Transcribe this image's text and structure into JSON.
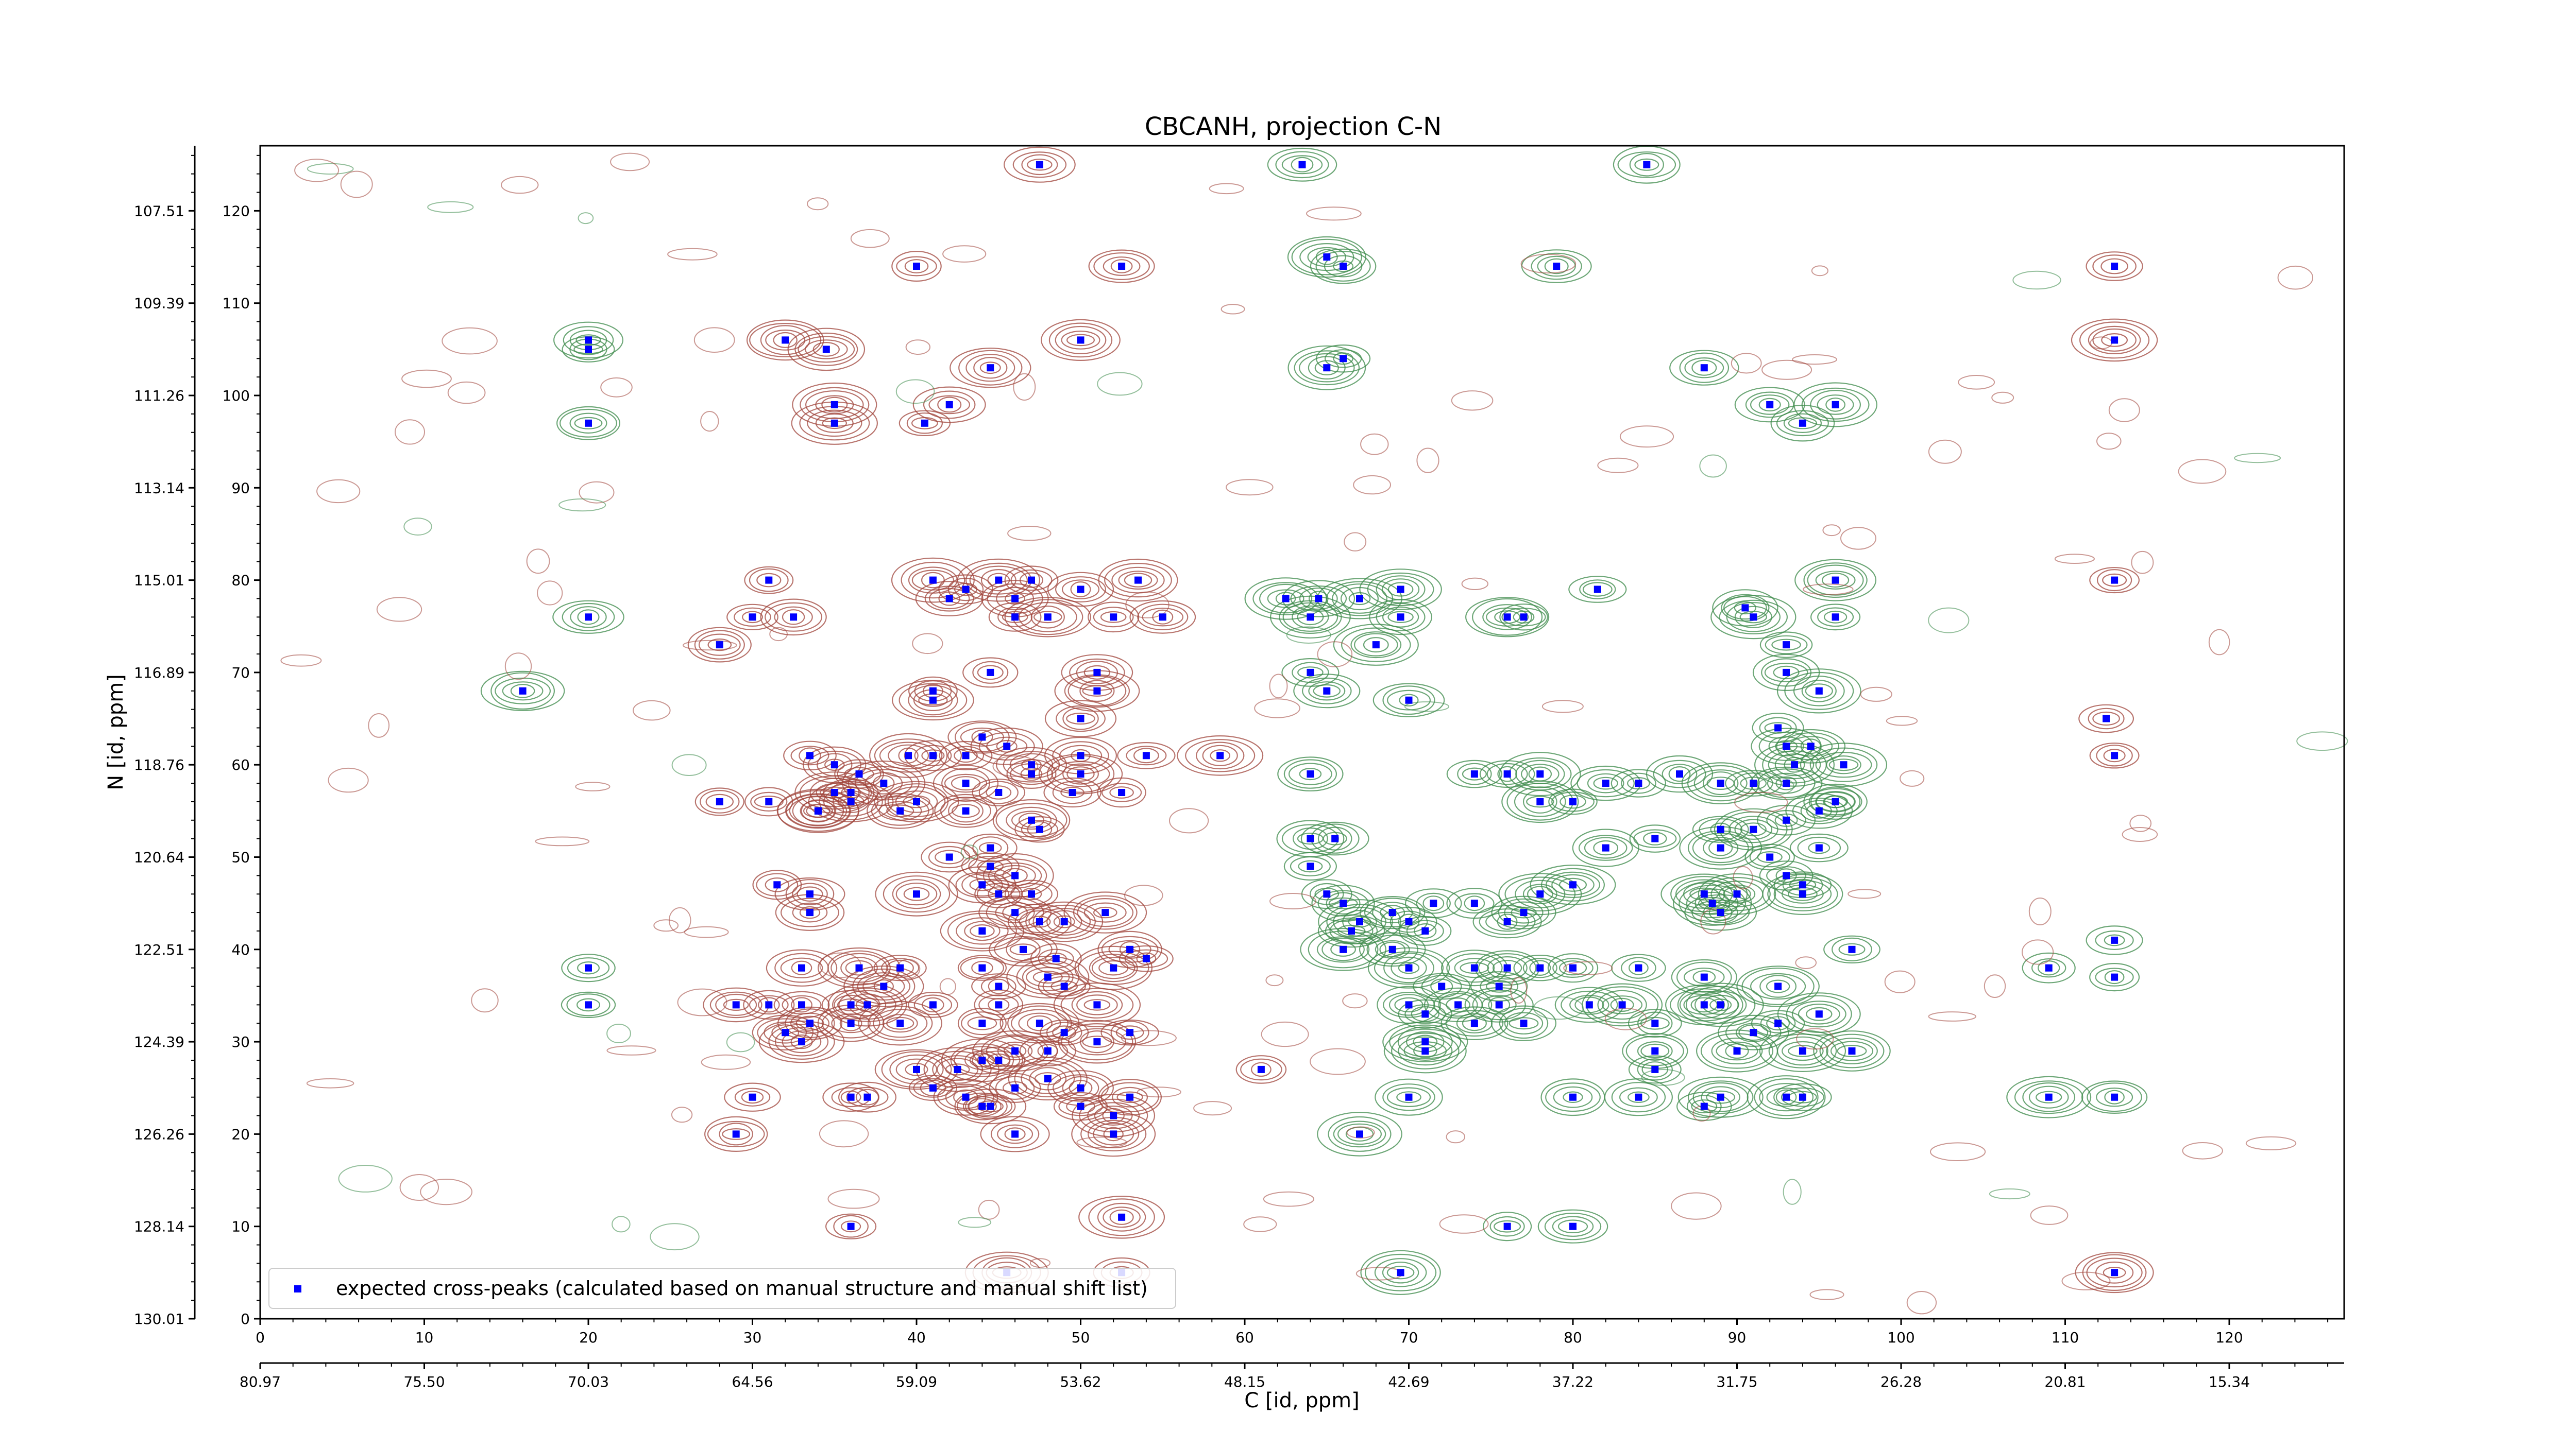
{
  "chart_data": {
    "type": "scatter",
    "title": "CBCANH, projection C-N",
    "xlabel": "C [id, ppm]",
    "ylabel": "N [id, ppm]",
    "x_index_ticks": [
      "0",
      "10",
      "20",
      "30",
      "40",
      "50",
      "60",
      "70",
      "80",
      "90",
      "100",
      "110",
      "120"
    ],
    "x_ppm_ticks": [
      "80.97",
      "75.50",
      "70.03",
      "64.56",
      "59.09",
      "53.62",
      "48.15",
      "42.69",
      "37.22",
      "31.75",
      "26.28",
      "20.81",
      "15.34"
    ],
    "y_index_ticks": [
      "0",
      "10",
      "20",
      "30",
      "40",
      "50",
      "60",
      "70",
      "80",
      "90",
      "100",
      "110",
      "120"
    ],
    "y_ppm_ticks": [
      "130.01",
      "128.14",
      "126.26",
      "124.39",
      "122.51",
      "120.64",
      "118.76",
      "116.89",
      "115.01",
      "113.14",
      "111.26",
      "109.39",
      "107.51"
    ],
    "xlim": [
      0,
      127
    ],
    "ylim": [
      0,
      127
    ],
    "legend": {
      "placement": "bottom-left",
      "label": "expected cross-peaks (calculated based on manual structure and manual shift list)"
    },
    "colors": {
      "marker": "#0000ff",
      "positive_contour": "#a0453c",
      "negative_contour": "#3c8a4a"
    },
    "series": [
      {
        "name": "expected cross-peaks (calculated based on manual structure and manual shift list)",
        "points": [
          [
            47.5,
            125
          ],
          [
            63.5,
            125
          ],
          [
            84.5,
            125
          ],
          [
            40,
            114
          ],
          [
            52.5,
            114
          ],
          [
            65,
            115
          ],
          [
            66,
            114
          ],
          [
            79,
            114
          ],
          [
            113,
            114
          ],
          [
            20,
            106
          ],
          [
            20,
            105
          ],
          [
            32,
            106
          ],
          [
            34.5,
            105
          ],
          [
            50,
            106
          ],
          [
            44.5,
            103
          ],
          [
            65,
            103
          ],
          [
            66,
            104
          ],
          [
            88,
            103
          ],
          [
            113,
            106
          ],
          [
            35,
            99
          ],
          [
            42,
            99
          ],
          [
            40.5,
            97
          ],
          [
            35,
            97
          ],
          [
            20,
            97
          ],
          [
            92,
            99
          ],
          [
            94,
            97
          ],
          [
            96,
            99
          ],
          [
            41,
            80
          ],
          [
            43,
            79
          ],
          [
            45,
            80
          ],
          [
            47,
            80
          ],
          [
            46,
            78
          ],
          [
            50,
            79
          ],
          [
            53.5,
            80
          ],
          [
            42,
            78
          ],
          [
            46,
            76
          ],
          [
            48,
            76
          ],
          [
            52,
            76
          ],
          [
            55,
            76
          ],
          [
            31,
            80
          ],
          [
            30,
            76
          ],
          [
            32.5,
            76
          ],
          [
            20,
            76
          ],
          [
            28,
            73
          ],
          [
            62.5,
            78
          ],
          [
            64.5,
            78
          ],
          [
            67,
            78
          ],
          [
            69.5,
            79
          ],
          [
            81.5,
            79
          ],
          [
            76,
            76
          ],
          [
            77,
            76
          ],
          [
            69.5,
            76
          ],
          [
            64,
            76
          ],
          [
            68,
            73
          ],
          [
            90.5,
            77
          ],
          [
            91,
            76
          ],
          [
            96,
            80
          ],
          [
            96,
            76
          ],
          [
            113,
            80
          ],
          [
            41,
            68
          ],
          [
            41,
            67
          ],
          [
            44.5,
            70
          ],
          [
            51,
            70
          ],
          [
            51,
            68
          ],
          [
            50,
            65
          ],
          [
            16,
            68
          ],
          [
            64,
            70
          ],
          [
            65,
            68
          ],
          [
            70,
            67
          ],
          [
            93,
            73
          ],
          [
            93,
            70
          ],
          [
            95,
            68
          ],
          [
            92.5,
            64
          ],
          [
            93,
            62
          ],
          [
            93.5,
            60
          ],
          [
            94.5,
            62
          ],
          [
            93,
            58
          ],
          [
            96.5,
            60
          ],
          [
            96,
            56
          ],
          [
            112.5,
            65
          ],
          [
            113,
            61
          ],
          [
            33.5,
            61
          ],
          [
            36.5,
            59
          ],
          [
            39.5,
            61
          ],
          [
            41,
            61
          ],
          [
            43,
            61
          ],
          [
            44,
            63
          ],
          [
            45.5,
            62
          ],
          [
            47,
            60
          ],
          [
            47,
            59
          ],
          [
            50,
            61
          ],
          [
            50,
            59
          ],
          [
            54,
            61
          ],
          [
            58.5,
            61
          ],
          [
            38,
            58
          ],
          [
            43,
            58
          ],
          [
            36,
            57
          ],
          [
            40,
            56
          ],
          [
            45,
            57
          ],
          [
            49.5,
            57
          ],
          [
            52.5,
            57
          ],
          [
            31,
            56
          ],
          [
            28,
            56
          ],
          [
            34,
            55
          ],
          [
            36,
            56
          ],
          [
            39,
            55
          ],
          [
            43,
            55
          ],
          [
            47,
            54
          ],
          [
            47.5,
            53
          ],
          [
            44.5,
            51
          ],
          [
            42,
            50
          ],
          [
            44.5,
            49
          ],
          [
            46,
            48
          ],
          [
            47,
            46
          ],
          [
            45,
            46
          ],
          [
            44,
            47
          ],
          [
            40,
            46
          ],
          [
            31.5,
            47
          ],
          [
            33.5,
            46
          ],
          [
            33.5,
            44
          ],
          [
            46,
            44
          ],
          [
            47.5,
            43
          ],
          [
            51.5,
            44
          ],
          [
            49,
            43
          ],
          [
            44,
            42
          ],
          [
            46.5,
            40
          ],
          [
            48.5,
            39
          ],
          [
            52,
            38
          ],
          [
            53,
            40
          ],
          [
            54,
            39
          ],
          [
            64,
            59
          ],
          [
            74,
            59
          ],
          [
            76,
            59
          ],
          [
            78,
            59
          ],
          [
            78,
            56
          ],
          [
            80,
            56
          ],
          [
            82,
            58
          ],
          [
            84,
            58
          ],
          [
            86.5,
            59
          ],
          [
            89,
            58
          ],
          [
            91,
            58
          ],
          [
            89,
            53
          ],
          [
            91,
            53
          ],
          [
            93,
            54
          ],
          [
            95,
            55
          ],
          [
            96,
            56
          ],
          [
            89,
            51
          ],
          [
            92,
            50
          ],
          [
            95,
            51
          ],
          [
            93,
            48
          ],
          [
            94,
            47
          ],
          [
            64,
            52
          ],
          [
            65.5,
            52
          ],
          [
            64,
            49
          ],
          [
            65,
            46
          ],
          [
            66,
            45
          ],
          [
            67,
            43
          ],
          [
            66.5,
            42
          ],
          [
            66,
            40
          ],
          [
            69,
            44
          ],
          [
            70,
            43
          ],
          [
            71.5,
            45
          ],
          [
            71,
            42
          ],
          [
            74,
            45
          ],
          [
            76,
            43
          ],
          [
            77,
            44
          ],
          [
            78,
            46
          ],
          [
            80,
            47
          ],
          [
            82,
            51
          ],
          [
            85,
            52
          ],
          [
            88,
            46
          ],
          [
            88.5,
            45
          ],
          [
            90,
            46
          ],
          [
            89,
            44
          ],
          [
            94,
            46
          ],
          [
            97,
            40
          ],
          [
            69,
            40
          ],
          [
            70,
            38
          ],
          [
            72,
            36
          ],
          [
            74,
            38
          ],
          [
            75.5,
            36
          ],
          [
            76,
            38
          ],
          [
            78,
            38
          ],
          [
            80,
            38
          ],
          [
            84,
            38
          ],
          [
            88,
            37
          ],
          [
            92.5,
            36
          ],
          [
            113,
            41
          ],
          [
            113,
            37
          ],
          [
            109,
            38
          ],
          [
            20,
            38
          ],
          [
            33,
            38
          ],
          [
            36.5,
            38
          ],
          [
            38,
            36
          ],
          [
            39,
            38
          ],
          [
            44,
            38
          ],
          [
            45,
            36
          ],
          [
            48,
            37
          ],
          [
            49,
            36
          ],
          [
            51,
            34
          ],
          [
            45,
            34
          ],
          [
            41,
            34
          ],
          [
            39,
            32
          ],
          [
            36,
            34
          ],
          [
            37,
            34
          ],
          [
            33,
            34
          ],
          [
            33.5,
            32
          ],
          [
            36,
            32
          ],
          [
            31,
            34
          ],
          [
            32,
            31
          ],
          [
            33,
            30
          ],
          [
            20,
            34
          ],
          [
            29,
            34
          ],
          [
            44,
            32
          ],
          [
            47.5,
            32
          ],
          [
            49,
            31
          ],
          [
            51,
            30
          ],
          [
            53,
            31
          ],
          [
            46,
            29
          ],
          [
            48,
            29
          ],
          [
            44,
            28
          ],
          [
            40,
            27
          ],
          [
            41,
            25
          ],
          [
            42.5,
            27
          ],
          [
            45,
            28
          ],
          [
            43,
            24
          ],
          [
            44.5,
            23
          ],
          [
            46,
            25
          ],
          [
            48,
            26
          ],
          [
            50,
            25
          ],
          [
            50,
            23
          ],
          [
            53,
            24
          ],
          [
            52,
            22
          ],
          [
            70,
            34
          ],
          [
            71,
            33
          ],
          [
            73,
            34
          ],
          [
            74,
            32
          ],
          [
            75.5,
            34
          ],
          [
            77,
            32
          ],
          [
            81,
            34
          ],
          [
            83,
            34
          ],
          [
            85,
            32
          ],
          [
            88,
            34
          ],
          [
            89,
            34
          ],
          [
            91,
            31
          ],
          [
            92.5,
            32
          ],
          [
            95,
            33
          ],
          [
            90,
            29
          ],
          [
            94,
            29
          ],
          [
            97,
            29
          ],
          [
            85,
            29
          ],
          [
            85,
            27
          ],
          [
            71,
            30
          ],
          [
            71,
            29
          ],
          [
            61,
            27
          ],
          [
            80,
            24
          ],
          [
            84,
            24
          ],
          [
            88,
            23
          ],
          [
            89,
            24
          ],
          [
            93,
            24
          ],
          [
            94,
            24
          ],
          [
            70,
            24
          ],
          [
            67,
            20
          ],
          [
            30,
            24
          ],
          [
            29,
            20
          ],
          [
            36,
            24
          ],
          [
            37,
            24
          ],
          [
            44,
            23
          ],
          [
            46,
            20
          ],
          [
            52,
            20
          ],
          [
            109,
            24
          ],
          [
            113,
            24
          ],
          [
            36,
            10
          ],
          [
            45.5,
            5
          ],
          [
            52.5,
            5
          ],
          [
            52.5,
            11
          ],
          [
            69.5,
            5
          ],
          [
            76,
            10
          ],
          [
            80,
            10
          ],
          [
            113,
            5
          ],
          [
            35,
            60
          ],
          [
            35,
            57
          ],
          [
            34,
            55
          ]
        ]
      }
    ]
  }
}
